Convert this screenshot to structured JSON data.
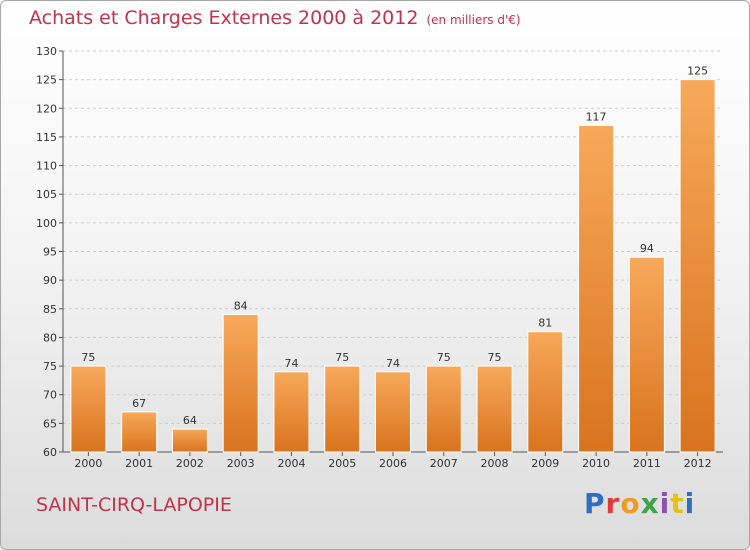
{
  "header": {
    "title": "Achats et Charges Externes 2000 à 2012",
    "unit": "(en milliers d'€)"
  },
  "footer": {
    "commune": "SAINT-CIRQ-LAPOPIE",
    "logo_text": "Proxiti"
  },
  "colors": {
    "bar_top": "#f7a95a",
    "bar_bottom": "#d9731e",
    "title": "#c0344a",
    "grid": "#cccccc"
  },
  "chart_data": {
    "type": "bar",
    "title": "Achats et Charges Externes 2000 à 2012",
    "categories": [
      "2000",
      "2001",
      "2002",
      "2003",
      "2004",
      "2005",
      "2006",
      "2007",
      "2008",
      "2009",
      "2010",
      "2011",
      "2012"
    ],
    "values": [
      75,
      67,
      64,
      84,
      74,
      75,
      74,
      75,
      75,
      81,
      117,
      94,
      125
    ],
    "ylim": [
      60,
      130
    ],
    "yticks": [
      60,
      65,
      70,
      75,
      80,
      85,
      90,
      95,
      100,
      105,
      110,
      115,
      120,
      125,
      130
    ],
    "grid": true
  }
}
